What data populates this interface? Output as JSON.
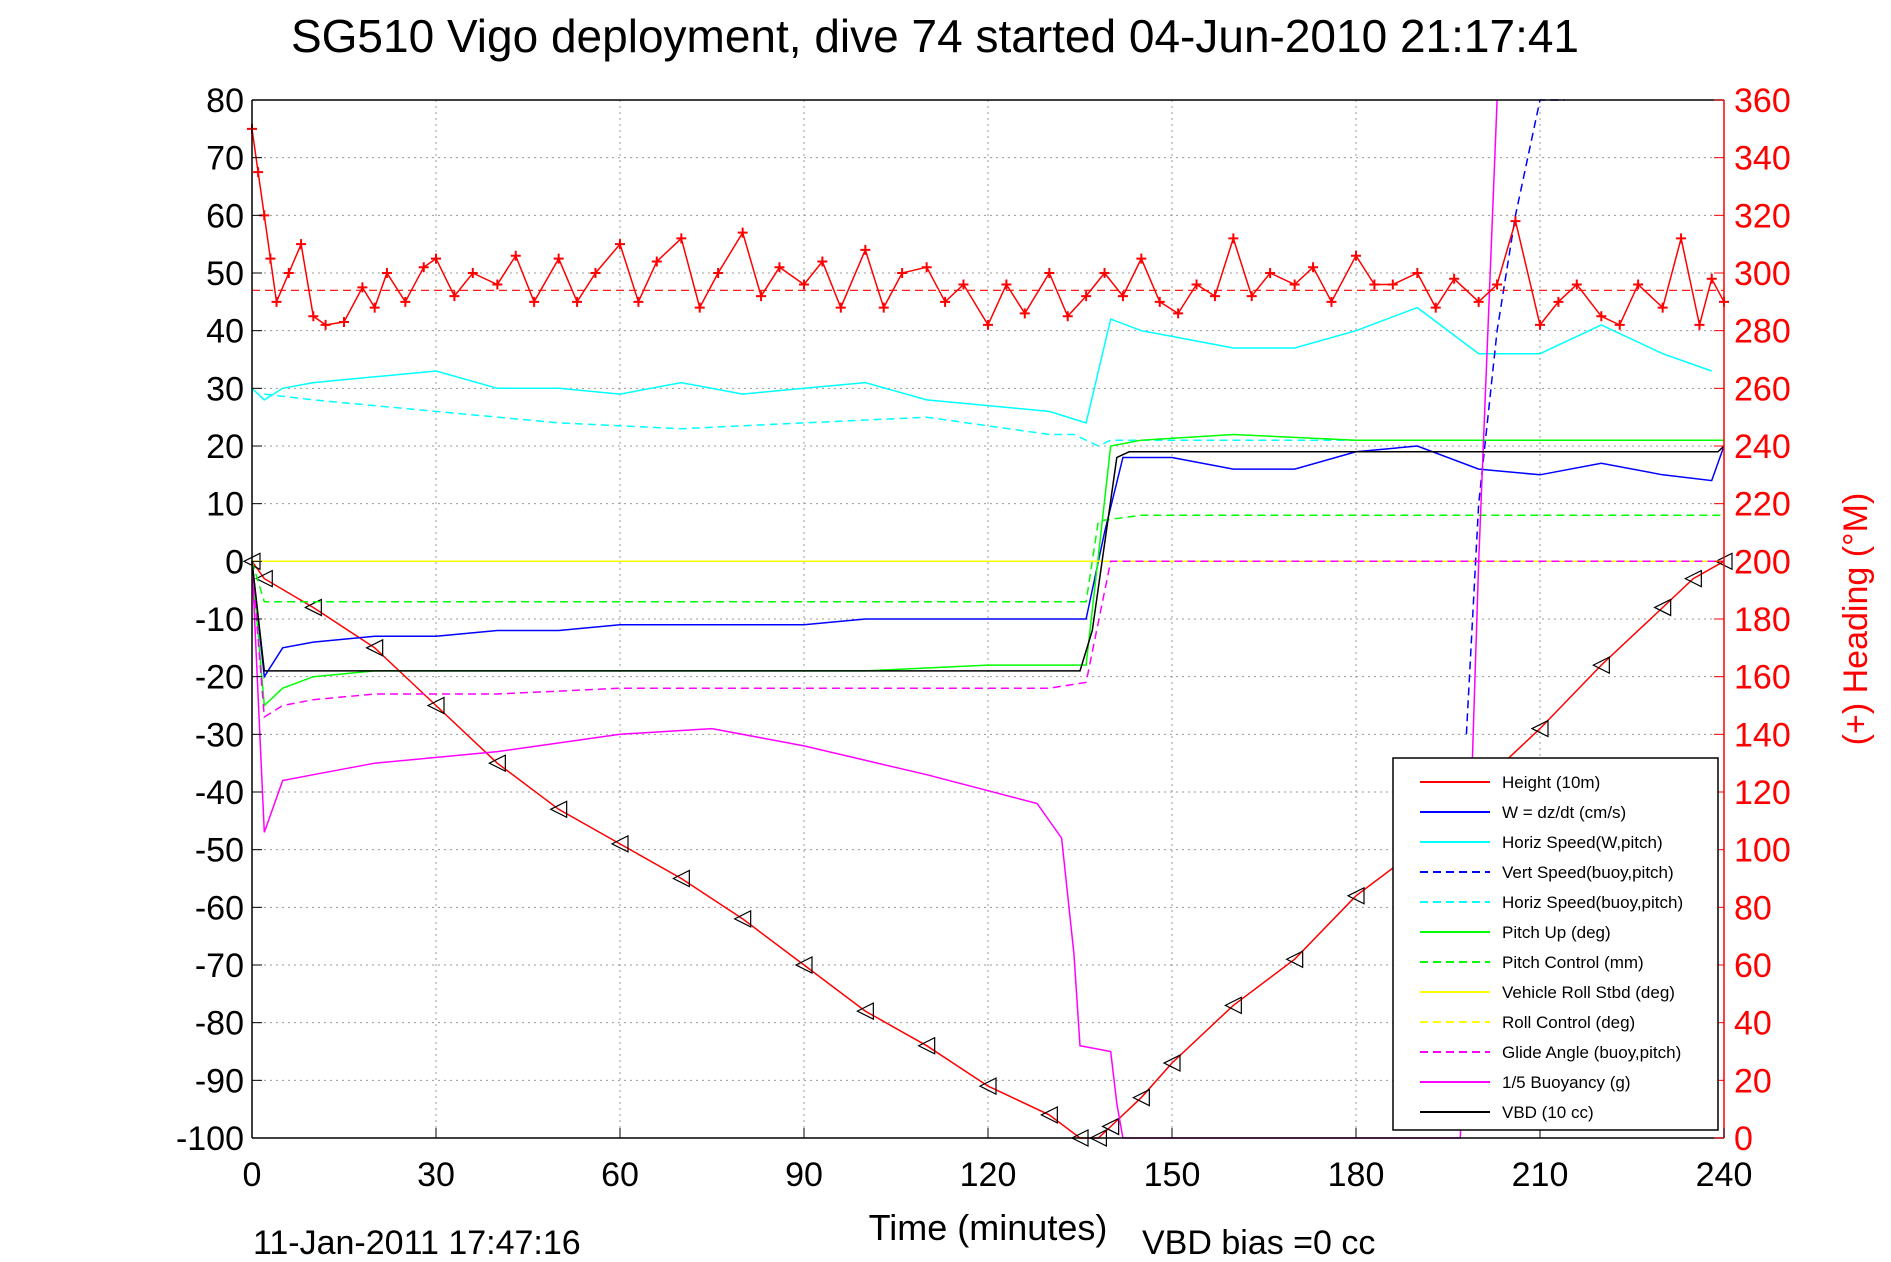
{
  "colors": {
    "height": "#ff0000",
    "w": "#0000ff",
    "horiz_speed_w": "#00ffff",
    "vert_speed_buoy": "#0000ff",
    "horiz_speed_buoy": "#00ffff",
    "pitch_up": "#00ff00",
    "pitch_control": "#00ff00",
    "roll": "#ffff00",
    "roll_control": "#ffff00",
    "glide_angle": "#ff00ff",
    "buoyancy": "#ff00ff",
    "vbd": "#000000",
    "heading": "#ff0000"
  },
  "chart_data": {
    "type": "line",
    "title": "SG510 Vigo deployment, dive 74 started 04-Jun-2010 21:17:41",
    "xlabel": "Time (minutes)",
    "ylabel_right": "(+) Heading (°M)",
    "xlim": [
      0,
      240
    ],
    "ylim": [
      -100,
      80
    ],
    "ylim_right": [
      0,
      360
    ],
    "xticks": [
      "0",
      "30",
      "60",
      "90",
      "120",
      "150",
      "180",
      "210",
      "240"
    ],
    "yticks": [
      "80",
      "70",
      "60",
      "50",
      "40",
      "30",
      "20",
      "10",
      "0",
      "-10",
      "-20",
      "-30",
      "-40",
      "-50",
      "-60",
      "-70",
      "-80",
      "-90",
      "-100"
    ],
    "yticks_right": [
      "360",
      "340",
      "320",
      "300",
      "280",
      "260",
      "240",
      "220",
      "200",
      "180",
      "160",
      "140",
      "120",
      "100",
      "80",
      "60",
      "40",
      "20",
      "0"
    ],
    "grid": true,
    "legend_position": "lower-right",
    "footer_date": "11-Jan-2011 17:47:16",
    "footer_vbd": "VBD bias =0 cc",
    "series": [
      {
        "key": "height",
        "name": "Height (10m)",
        "style": "solid",
        "x": [
          0,
          2,
          10,
          20,
          30,
          40,
          50,
          60,
          70,
          80,
          90,
          100,
          110,
          120,
          130,
          135,
          138,
          140,
          145,
          150,
          160,
          170,
          180,
          190,
          200,
          210,
          220,
          230,
          235,
          240
        ],
        "y": [
          0,
          -3,
          -8,
          -15,
          -25,
          -35,
          -43,
          -49,
          -55,
          -62,
          -70,
          -78,
          -84,
          -91,
          -96,
          -100,
          -100,
          -98,
          -93,
          -87,
          -77,
          -69,
          -58,
          -50,
          -39,
          -29,
          -18,
          -8,
          -3,
          0
        ]
      },
      {
        "key": "w",
        "name": "W = dz/dt (cm/s)",
        "style": "solid",
        "x": [
          0,
          2,
          5,
          10,
          20,
          30,
          40,
          50,
          60,
          70,
          80,
          90,
          100,
          110,
          120,
          130,
          136,
          139,
          142,
          150,
          160,
          170,
          180,
          190,
          200,
          210,
          220,
          230,
          238,
          240
        ],
        "y": [
          0,
          -20,
          -15,
          -14,
          -13,
          -13,
          -12,
          -12,
          -11,
          -11,
          -11,
          -11,
          -10,
          -10,
          -10,
          -10,
          -10,
          5,
          18,
          18,
          16,
          16,
          19,
          20,
          16,
          15,
          17,
          15,
          14,
          20
        ]
      },
      {
        "key": "horiz_speed_w",
        "name": "Horiz Speed(W,pitch)",
        "style": "solid",
        "x": [
          0,
          2,
          5,
          10,
          20,
          30,
          40,
          50,
          60,
          70,
          80,
          90,
          100,
          110,
          120,
          130,
          136,
          140,
          145,
          150,
          160,
          170,
          180,
          190,
          200,
          210,
          220,
          230,
          238
        ],
        "y": [
          30,
          28,
          30,
          31,
          32,
          33,
          30,
          30,
          29,
          31,
          29,
          30,
          31,
          28,
          27,
          26,
          24,
          42,
          40,
          39,
          37,
          37,
          40,
          44,
          36,
          36,
          41,
          36,
          33
        ]
      },
      {
        "key": "vert_speed_buoy",
        "name": "Vert Speed(buoy,pitch)",
        "style": "dashed",
        "x": [
          198,
          200,
          203,
          206,
          210,
          214
        ],
        "y": [
          -30,
          10,
          40,
          60,
          80,
          80
        ]
      },
      {
        "key": "horiz_speed_buoy",
        "name": "Horiz Speed(buoy,pitch)",
        "style": "dashed",
        "x": [
          2,
          10,
          30,
          50,
          70,
          90,
          110,
          130,
          134,
          138,
          140,
          145,
          160,
          190,
          210,
          235,
          240
        ],
        "y": [
          29,
          28,
          26,
          24,
          23,
          24,
          25,
          22,
          22,
          20,
          21,
          21,
          21,
          21,
          21,
          21,
          21
        ]
      },
      {
        "key": "pitch_up",
        "name": "Pitch Up (deg)",
        "style": "solid",
        "x": [
          0,
          2,
          5,
          10,
          20,
          40,
          60,
          80,
          100,
          120,
          130,
          136,
          140,
          145,
          160,
          180,
          200,
          220,
          240
        ],
        "y": [
          0,
          -25,
          -22,
          -20,
          -19,
          -19,
          -19,
          -19,
          -19,
          -18,
          -18,
          -18,
          20,
          21,
          22,
          21,
          21,
          21,
          21
        ]
      },
      {
        "key": "pitch_control",
        "name": "Pitch Control (mm)",
        "style": "dashed",
        "x": [
          0,
          2,
          10,
          30,
          50,
          70,
          90,
          110,
          130,
          136,
          138,
          145,
          160,
          180,
          200,
          220,
          240
        ],
        "y": [
          0,
          -7,
          -7,
          -7,
          -7,
          -7,
          -7,
          -7,
          -7,
          -7,
          7,
          8,
          8,
          8,
          8,
          8,
          8
        ]
      },
      {
        "key": "roll",
        "name": "Vehicle Roll Stbd (deg)",
        "style": "solid",
        "x": [
          0,
          2,
          10,
          30,
          60,
          90,
          120,
          136,
          140,
          150,
          180,
          210,
          240
        ],
        "y": [
          0,
          0,
          0,
          0,
          0,
          0,
          0,
          0,
          0,
          0,
          0,
          0,
          0
        ]
      },
      {
        "key": "roll_control",
        "name": "Roll Control (deg)",
        "style": "dashed",
        "x": [
          0,
          2,
          10,
          30,
          60,
          90,
          120,
          136,
          140,
          150,
          180,
          210,
          240
        ],
        "y": [
          0,
          0,
          0,
          0,
          0,
          0,
          0,
          0,
          0,
          0,
          0,
          0,
          0
        ]
      },
      {
        "key": "glide_angle",
        "name": "Glide Angle (buoy,pitch)",
        "style": "dashed",
        "x": [
          0,
          2,
          5,
          10,
          20,
          40,
          60,
          80,
          100,
          120,
          130,
          136,
          140,
          150,
          180,
          210,
          240
        ],
        "y": [
          0,
          -27,
          -25,
          -24,
          -23,
          -23,
          -22,
          -22,
          -22,
          -22,
          -22,
          -21,
          0,
          0,
          0,
          0,
          0
        ]
      },
      {
        "key": "buoyancy",
        "name": "1/5 Buoyancy (g)",
        "style": "solid",
        "x": [
          0,
          2,
          5,
          10,
          20,
          40,
          60,
          75,
          90,
          110,
          128,
          132,
          134,
          135,
          140,
          141,
          142,
          143,
          196,
          197,
          200,
          203
        ],
        "y": [
          0,
          -47,
          -38,
          -37,
          -35,
          -33,
          -30,
          -29,
          -32,
          -37,
          -42,
          -48,
          -68,
          -84,
          -85,
          -94,
          -100,
          -100,
          -100,
          -100,
          0,
          80
        ]
      },
      {
        "key": "vbd",
        "name": "VBD (10 cc)",
        "style": "solid",
        "x": [
          0,
          2,
          40,
          80,
          120,
          135,
          137,
          141,
          143,
          160,
          200,
          239,
          240
        ],
        "y": [
          0,
          -19,
          -19,
          -19,
          -19,
          -19,
          -12,
          18,
          19,
          19,
          19,
          19,
          20
        ]
      }
    ],
    "heading": {
      "name": "(+) Heading",
      "axis": "right",
      "mean": 294,
      "x": [
        0,
        1,
        2,
        3,
        4,
        6,
        8,
        10,
        12,
        15,
        18,
        20,
        22,
        25,
        28,
        30,
        33,
        36,
        40,
        43,
        46,
        50,
        53,
        56,
        60,
        63,
        66,
        70,
        73,
        76,
        80,
        83,
        86,
        90,
        93,
        96,
        100,
        103,
        106,
        110,
        113,
        116,
        120,
        123,
        126,
        130,
        133,
        136,
        139,
        142,
        145,
        148,
        151,
        154,
        157,
        160,
        163,
        166,
        170,
        173,
        176,
        180,
        183,
        186,
        190,
        193,
        196,
        200,
        203,
        206,
        210,
        213,
        216,
        220,
        223,
        226,
        230,
        233,
        236,
        238,
        240
      ],
      "y": [
        350,
        335,
        320,
        305,
        290,
        300,
        310,
        285,
        282,
        283,
        295,
        288,
        300,
        290,
        302,
        305,
        292,
        300,
        296,
        306,
        290,
        305,
        290,
        300,
        310,
        290,
        304,
        312,
        288,
        300,
        314,
        292,
        302,
        296,
        304,
        288,
        308,
        288,
        300,
        302,
        290,
        296,
        282,
        296,
        286,
        300,
        285,
        292,
        300,
        292,
        305,
        290,
        286,
        296,
        292,
        312,
        292,
        300,
        296,
        302,
        290,
        306,
        296,
        296,
        300,
        288,
        298,
        290,
        296,
        318,
        282,
        290,
        296,
        285,
        282,
        296,
        288,
        312,
        282,
        298,
        290
      ]
    }
  }
}
